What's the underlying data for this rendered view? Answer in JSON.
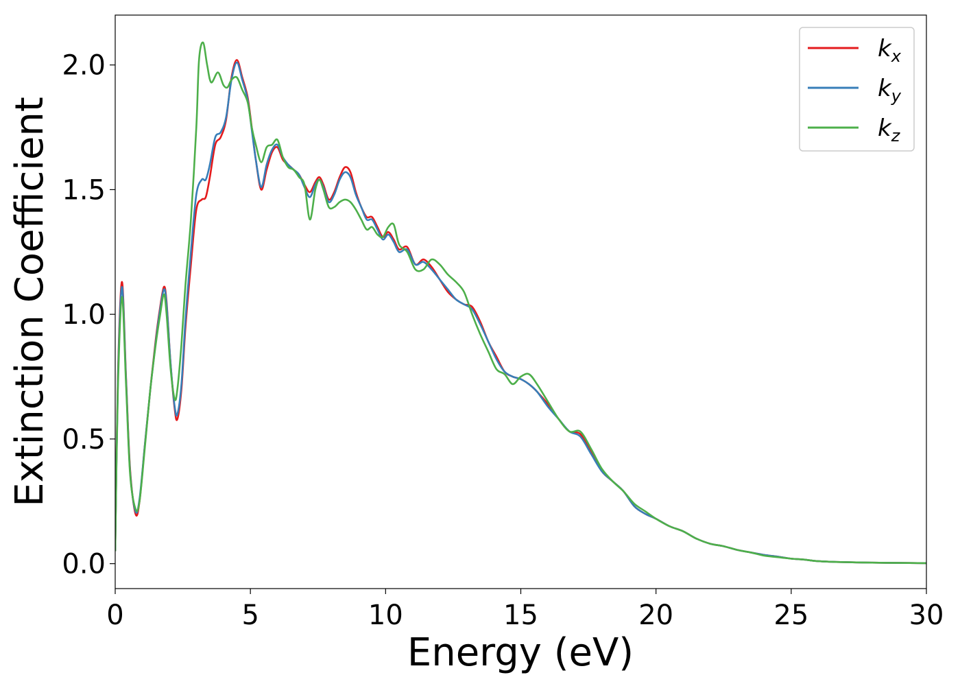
{
  "chart_data": {
    "type": "line",
    "title": "",
    "xlabel": "Energy (eV)",
    "ylabel": "Extinction Coefficient",
    "xlim": [
      0,
      30
    ],
    "ylim": [
      -0.1,
      2.2
    ],
    "xticks": [
      0,
      5,
      10,
      15,
      20,
      25,
      30
    ],
    "yticks": [
      0.0,
      0.5,
      1.0,
      1.5,
      2.0
    ],
    "xtick_labels": [
      "0",
      "5",
      "10",
      "15",
      "20",
      "25",
      "30"
    ],
    "ytick_labels": [
      "0.0",
      "0.5",
      "1.0",
      "1.5",
      "2.0"
    ],
    "grid": false,
    "legend_position": "top-right",
    "series": [
      {
        "name": "k_x",
        "base": "k",
        "sub": "x",
        "color": "#e41a1c",
        "x": [
          0,
          0.1,
          0.25,
          0.4,
          0.55,
          0.75,
          0.9,
          1.1,
          1.3,
          1.5,
          1.65,
          1.8,
          1.9,
          2.05,
          2.2,
          2.3,
          2.45,
          2.6,
          2.8,
          3.0,
          3.2,
          3.35,
          3.5,
          3.7,
          3.9,
          4.1,
          4.3,
          4.5,
          4.7,
          4.9,
          5.05,
          5.2,
          5.4,
          5.6,
          5.8,
          6.0,
          6.2,
          6.4,
          6.6,
          6.8,
          7.0,
          7.2,
          7.4,
          7.55,
          7.7,
          7.9,
          8.1,
          8.3,
          8.5,
          8.7,
          8.9,
          9.1,
          9.3,
          9.5,
          9.7,
          9.9,
          10.1,
          10.3,
          10.5,
          10.8,
          11.1,
          11.4,
          11.7,
          12.0,
          12.3,
          12.6,
          12.9,
          13.2,
          13.5,
          13.8,
          14.1,
          14.4,
          14.7,
          15.0,
          15.3,
          15.6,
          16.0,
          16.4,
          16.8,
          17.2,
          17.6,
          18.0,
          18.4,
          18.8,
          19.2,
          19.6,
          20.0,
          20.5,
          21.0,
          21.5,
          22.0,
          22.5,
          23.0,
          23.5,
          24.0,
          24.5,
          25.0,
          25.5,
          26.0,
          27.0,
          28.0,
          29.0,
          30.0
        ],
        "y": [
          0.05,
          0.75,
          1.13,
          0.75,
          0.38,
          0.2,
          0.25,
          0.48,
          0.7,
          0.9,
          1.02,
          1.11,
          1.05,
          0.8,
          0.62,
          0.58,
          0.7,
          0.95,
          1.2,
          1.42,
          1.46,
          1.47,
          1.55,
          1.68,
          1.71,
          1.78,
          1.95,
          2.02,
          1.95,
          1.87,
          1.75,
          1.62,
          1.5,
          1.58,
          1.65,
          1.67,
          1.62,
          1.6,
          1.58,
          1.56,
          1.52,
          1.49,
          1.53,
          1.55,
          1.52,
          1.46,
          1.49,
          1.55,
          1.59,
          1.57,
          1.49,
          1.43,
          1.39,
          1.39,
          1.35,
          1.31,
          1.33,
          1.3,
          1.26,
          1.27,
          1.2,
          1.22,
          1.19,
          1.14,
          1.09,
          1.06,
          1.04,
          1.03,
          0.97,
          0.89,
          0.83,
          0.77,
          0.75,
          0.74,
          0.72,
          0.69,
          0.64,
          0.58,
          0.53,
          0.52,
          0.45,
          0.37,
          0.33,
          0.29,
          0.23,
          0.2,
          0.18,
          0.15,
          0.13,
          0.1,
          0.08,
          0.07,
          0.055,
          0.045,
          0.035,
          0.028,
          0.02,
          0.016,
          0.01,
          0.006,
          0.004,
          0.003,
          0.002
        ]
      },
      {
        "name": "k_y",
        "base": "k",
        "sub": "y",
        "color": "#377eb8",
        "x": [
          0,
          0.1,
          0.25,
          0.4,
          0.55,
          0.75,
          0.9,
          1.1,
          1.3,
          1.5,
          1.65,
          1.8,
          1.9,
          2.05,
          2.2,
          2.3,
          2.45,
          2.6,
          2.8,
          3.0,
          3.2,
          3.35,
          3.5,
          3.7,
          3.9,
          4.1,
          4.3,
          4.5,
          4.7,
          4.9,
          5.05,
          5.2,
          5.4,
          5.6,
          5.8,
          6.0,
          6.2,
          6.4,
          6.6,
          6.8,
          7.0,
          7.2,
          7.4,
          7.55,
          7.7,
          7.9,
          8.1,
          8.3,
          8.5,
          8.7,
          8.9,
          9.1,
          9.3,
          9.5,
          9.7,
          9.9,
          10.1,
          10.3,
          10.5,
          10.8,
          11.1,
          11.4,
          11.7,
          12.0,
          12.3,
          12.6,
          12.9,
          13.2,
          13.5,
          13.8,
          14.1,
          14.4,
          14.7,
          15.0,
          15.3,
          15.6,
          16.0,
          16.4,
          16.8,
          17.2,
          17.6,
          18.0,
          18.4,
          18.8,
          19.2,
          19.6,
          20.0,
          20.5,
          21.0,
          21.5,
          22.0,
          22.5,
          23.0,
          23.5,
          24.0,
          24.5,
          25.0,
          25.5,
          26.0,
          27.0,
          28.0,
          29.0,
          30.0
        ],
        "y": [
          0.05,
          0.73,
          1.11,
          0.74,
          0.37,
          0.21,
          0.26,
          0.48,
          0.7,
          0.89,
          1.01,
          1.1,
          1.04,
          0.8,
          0.63,
          0.6,
          0.72,
          0.98,
          1.25,
          1.48,
          1.54,
          1.54,
          1.6,
          1.71,
          1.73,
          1.79,
          1.94,
          2.01,
          1.94,
          1.86,
          1.74,
          1.62,
          1.51,
          1.6,
          1.66,
          1.68,
          1.63,
          1.6,
          1.58,
          1.56,
          1.51,
          1.47,
          1.52,
          1.54,
          1.51,
          1.45,
          1.48,
          1.54,
          1.57,
          1.55,
          1.48,
          1.43,
          1.38,
          1.38,
          1.34,
          1.3,
          1.32,
          1.29,
          1.25,
          1.26,
          1.2,
          1.21,
          1.18,
          1.14,
          1.1,
          1.06,
          1.04,
          1.02,
          0.96,
          0.89,
          0.82,
          0.77,
          0.75,
          0.74,
          0.72,
          0.69,
          0.63,
          0.58,
          0.53,
          0.51,
          0.44,
          0.37,
          0.33,
          0.29,
          0.23,
          0.2,
          0.18,
          0.15,
          0.13,
          0.1,
          0.08,
          0.07,
          0.055,
          0.045,
          0.035,
          0.028,
          0.02,
          0.016,
          0.01,
          0.006,
          0.004,
          0.003,
          0.002
        ]
      },
      {
        "name": "k_z",
        "base": "k",
        "sub": "z",
        "color": "#4daf4a",
        "x": [
          0,
          0.1,
          0.25,
          0.4,
          0.55,
          0.75,
          0.9,
          1.1,
          1.3,
          1.5,
          1.65,
          1.8,
          1.9,
          2.05,
          2.2,
          2.3,
          2.45,
          2.6,
          2.8,
          3.0,
          3.1,
          3.25,
          3.4,
          3.55,
          3.8,
          4.0,
          4.15,
          4.3,
          4.5,
          4.7,
          4.9,
          5.05,
          5.2,
          5.4,
          5.6,
          5.8,
          6.0,
          6.2,
          6.4,
          6.6,
          6.8,
          7.0,
          7.2,
          7.4,
          7.55,
          7.7,
          7.9,
          8.1,
          8.3,
          8.5,
          8.7,
          8.9,
          9.1,
          9.3,
          9.5,
          9.7,
          9.9,
          10.1,
          10.3,
          10.5,
          10.8,
          11.1,
          11.4,
          11.7,
          12.0,
          12.3,
          12.6,
          12.9,
          13.2,
          13.5,
          13.8,
          14.1,
          14.4,
          14.7,
          15.0,
          15.3,
          15.6,
          16.0,
          16.4,
          16.8,
          17.2,
          17.6,
          18.0,
          18.4,
          18.8,
          19.2,
          19.6,
          20.0,
          20.5,
          21.0,
          21.5,
          22.0,
          22.5,
          23.0,
          23.5,
          24.0,
          24.5,
          25.0,
          25.5,
          26.0,
          27.0,
          28.0,
          29.0,
          30.0
        ],
        "y": [
          0.05,
          0.7,
          1.07,
          0.72,
          0.36,
          0.22,
          0.25,
          0.47,
          0.7,
          0.88,
          0.99,
          1.08,
          1.0,
          0.78,
          0.66,
          0.7,
          0.88,
          1.12,
          1.38,
          1.75,
          2.02,
          2.09,
          2.0,
          1.93,
          1.97,
          1.92,
          1.91,
          1.94,
          1.95,
          1.9,
          1.85,
          1.75,
          1.68,
          1.61,
          1.67,
          1.68,
          1.7,
          1.63,
          1.59,
          1.58,
          1.55,
          1.52,
          1.38,
          1.5,
          1.54,
          1.5,
          1.43,
          1.43,
          1.45,
          1.46,
          1.45,
          1.42,
          1.38,
          1.34,
          1.35,
          1.32,
          1.31,
          1.35,
          1.36,
          1.28,
          1.25,
          1.18,
          1.18,
          1.22,
          1.2,
          1.16,
          1.13,
          1.09,
          1.0,
          0.92,
          0.85,
          0.78,
          0.76,
          0.72,
          0.75,
          0.76,
          0.72,
          0.65,
          0.58,
          0.53,
          0.53,
          0.46,
          0.38,
          0.33,
          0.29,
          0.24,
          0.21,
          0.18,
          0.15,
          0.13,
          0.1,
          0.08,
          0.07,
          0.055,
          0.045,
          0.032,
          0.026,
          0.02,
          0.016,
          0.01,
          0.006,
          0.004,
          0.003,
          0.002
        ]
      }
    ]
  }
}
